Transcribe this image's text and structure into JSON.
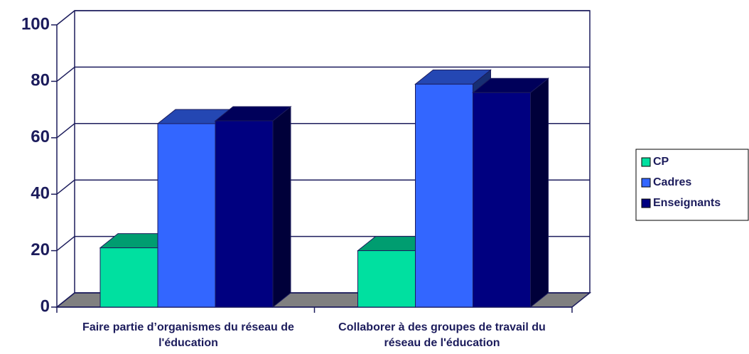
{
  "chart_data": {
    "type": "bar3d",
    "categories": [
      "Faire partie d’organismes du réseau de l'éducation",
      "Collaborer à des groupes de travail du réseau de l'éducation"
    ],
    "series": [
      {
        "name": "CP",
        "color": "#00e0a0",
        "values": [
          21,
          20
        ]
      },
      {
        "name": "Cadres",
        "color": "#3366ff",
        "values": [
          65,
          79
        ]
      },
      {
        "name": "Enseignants",
        "color": "#000080",
        "values": [
          66,
          76
        ]
      }
    ],
    "ylim": [
      0,
      100
    ],
    "yticks": [
      0,
      20,
      40,
      60,
      80,
      100
    ],
    "grid": true,
    "legend": "right"
  }
}
